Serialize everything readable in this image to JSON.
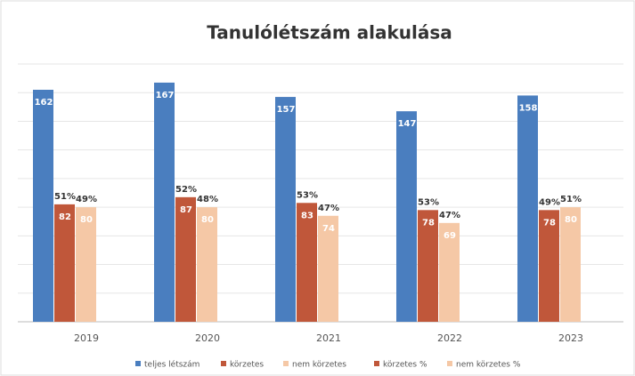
{
  "chart_data": {
    "type": "bar",
    "title": "Tanulólétszám alakulása",
    "categories": [
      "2019",
      "2020",
      "2021",
      "2022",
      "2023"
    ],
    "series": [
      {
        "name": "teljes létszám",
        "color": "#4a7ebf",
        "values": [
          162,
          167,
          157,
          147,
          158
        ]
      },
      {
        "name": "körzetes",
        "color": "#c0573a",
        "values": [
          82,
          87,
          83,
          78,
          78
        ]
      },
      {
        "name": "nem körzetes",
        "color": "#f5c8a6",
        "values": [
          80,
          80,
          74,
          69,
          80
        ]
      },
      {
        "name": "körzetes %",
        "color": "#c0573a",
        "values": [
          51,
          52,
          53,
          53,
          49
        ],
        "value_labels": [
          "51%",
          "52%",
          "53%",
          "53%",
          "49%"
        ]
      },
      {
        "name": "nem körzetes %",
        "color": "#f5c8a6",
        "values": [
          49,
          48,
          47,
          47,
          51
        ],
        "value_labels": [
          "49%",
          "48%",
          "47%",
          "47%",
          "51%"
        ]
      }
    ],
    "ylim": [
      0,
      180
    ],
    "yticks": [
      0,
      20,
      40,
      60,
      80,
      100,
      120,
      140,
      160,
      180
    ],
    "grid": true
  }
}
